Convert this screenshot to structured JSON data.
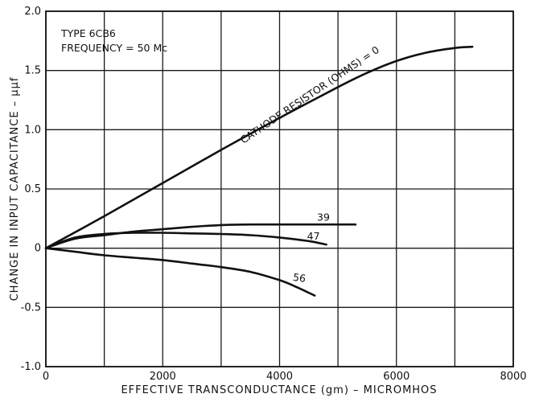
{
  "chart_data": {
    "type": "line",
    "annotations": {
      "type_label": "TYPE 6CB6",
      "frequency_label": "FREQUENCY = 50 Mc"
    },
    "xlabel": "EFFECTIVE TRANSCONDUCTANCE (gm) – MICROMHOS",
    "ylabel": "CHANGE IN INPUT CAPACITANCE – µµf",
    "xlim": [
      0,
      8000
    ],
    "ylim": [
      -1.0,
      2.0
    ],
    "x_ticks": [
      {
        "value": 0,
        "label": "0"
      },
      {
        "value": 2000,
        "label": "2000"
      },
      {
        "value": 4000,
        "label": "4000"
      },
      {
        "value": 6000,
        "label": "6000"
      },
      {
        "value": 8000,
        "label": "8000"
      }
    ],
    "y_ticks": [
      {
        "value": 2.0,
        "label": "2.0"
      },
      {
        "value": 1.5,
        "label": "1.5"
      },
      {
        "value": 1.0,
        "label": "1.0"
      },
      {
        "value": 0.5,
        "label": "0.5"
      },
      {
        "value": 0,
        "label": "0"
      },
      {
        "value": -0.5,
        "label": "-0.5"
      },
      {
        "value": -1.0,
        "label": "-1.0"
      }
    ],
    "grid": true,
    "series": [
      {
        "name": "CATHODE RESISTOR (OHMS) = 0",
        "x": [
          0,
          1000,
          2000,
          3000,
          4000,
          5000,
          5500,
          6000,
          6500,
          7000,
          7300
        ],
        "y": [
          0,
          0.27,
          0.55,
          0.83,
          1.1,
          1.36,
          1.48,
          1.58,
          1.65,
          1.69,
          1.7
        ]
      },
      {
        "name": "39",
        "x": [
          0,
          500,
          1000,
          1500,
          2000,
          2500,
          3000,
          3500,
          4000,
          4500,
          5000,
          5300
        ],
        "y": [
          0,
          0.08,
          0.11,
          0.14,
          0.16,
          0.18,
          0.195,
          0.2,
          0.2,
          0.2,
          0.2,
          0.2
        ]
      },
      {
        "name": "47",
        "x": [
          0,
          500,
          1000,
          1500,
          2000,
          2500,
          3000,
          3500,
          4000,
          4500,
          4800
        ],
        "y": [
          0,
          0.09,
          0.12,
          0.13,
          0.13,
          0.125,
          0.12,
          0.11,
          0.09,
          0.06,
          0.03
        ]
      },
      {
        "name": "56",
        "x": [
          0,
          500,
          1000,
          1500,
          2000,
          2500,
          3000,
          3500,
          4000,
          4300,
          4600
        ],
        "y": [
          0,
          -0.03,
          -0.06,
          -0.08,
          -0.1,
          -0.13,
          -0.16,
          -0.2,
          -0.27,
          -0.33,
          -0.4
        ]
      }
    ]
  }
}
